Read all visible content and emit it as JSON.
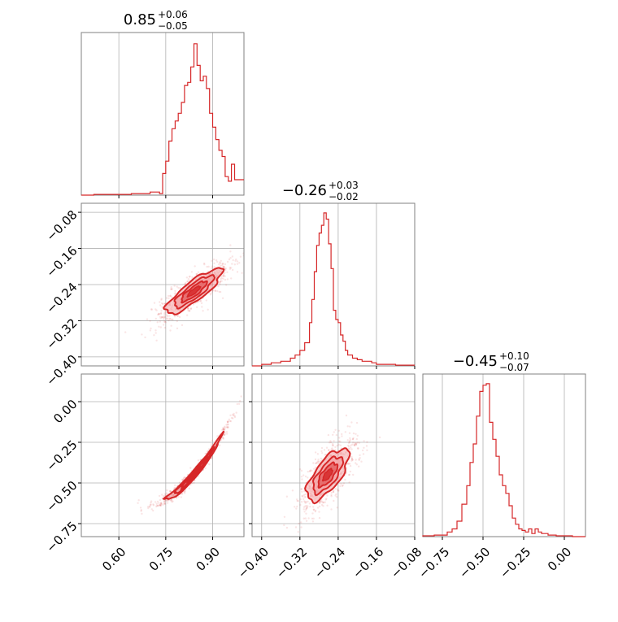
{
  "chart_data": [
    {
      "type": "histogram",
      "panel": "row1-col1",
      "parameter_index": 0,
      "title": {
        "median": "0.85",
        "upper": "+0.06",
        "lower": "−0.05"
      },
      "xlim": [
        0.48,
        1.0
      ],
      "bins": {
        "x": [
          0.48,
          0.52,
          0.56,
          0.6,
          0.64,
          0.67,
          0.7,
          0.73,
          0.74,
          0.75,
          0.76,
          0.77,
          0.78,
          0.79,
          0.8,
          0.81,
          0.82,
          0.83,
          0.84,
          0.85,
          0.86,
          0.87,
          0.88,
          0.89,
          0.9,
          0.91,
          0.92,
          0.93,
          0.94,
          0.95,
          0.96,
          0.97,
          0.98
        ],
        "y": [
          0,
          0.005,
          0.005,
          0.005,
          0.01,
          0.01,
          0.02,
          0.01,
          0.14,
          0.22,
          0.35,
          0.43,
          0.48,
          0.53,
          0.6,
          0.71,
          0.73,
          0.83,
          0.98,
          0.84,
          0.74,
          0.77,
          0.69,
          0.53,
          0.44,
          0.36,
          0.29,
          0.25,
          0.12,
          0.09,
          0.2,
          0.1,
          0.1
        ]
      }
    },
    {
      "type": "histogram",
      "panel": "row2-col2",
      "parameter_index": 1,
      "title": {
        "median": "−0.26",
        "upper": "+0.03",
        "lower": "−0.02"
      },
      "xlim": [
        -0.42,
        -0.08
      ],
      "xticks": [
        "−0.40",
        "−0.32",
        "−0.24",
        "−0.16",
        "−0.08"
      ],
      "bins": {
        "x": [
          -0.42,
          -0.4,
          -0.38,
          -0.36,
          -0.34,
          -0.33,
          -0.32,
          -0.31,
          -0.3,
          -0.295,
          -0.29,
          -0.285,
          -0.28,
          -0.275,
          -0.27,
          -0.265,
          -0.26,
          -0.255,
          -0.25,
          -0.245,
          -0.24,
          -0.235,
          -0.23,
          -0.225,
          -0.22,
          -0.21,
          -0.2,
          -0.19,
          -0.18,
          -0.17,
          -0.16,
          -0.14,
          -0.12,
          -0.1
        ],
        "y": [
          0,
          0.01,
          0.02,
          0.03,
          0.05,
          0.07,
          0.1,
          0.15,
          0.28,
          0.43,
          0.61,
          0.78,
          0.86,
          0.91,
          0.99,
          0.95,
          0.79,
          0.63,
          0.36,
          0.3,
          0.28,
          0.2,
          0.16,
          0.1,
          0.07,
          0.05,
          0.04,
          0.03,
          0.03,
          0.02,
          0.01,
          0.01,
          0.005,
          0.005
        ]
      }
    },
    {
      "type": "histogram",
      "panel": "row3-col3",
      "parameter_index": 2,
      "title": {
        "median": "−0.45",
        "upper": "+0.10",
        "lower": "−0.07"
      },
      "xlim": [
        -0.87,
        0.13
      ],
      "xticks": [
        "−0.75",
        "−0.50",
        "−0.25",
        "0.00"
      ],
      "bins": {
        "x": [
          -0.87,
          -0.8,
          -0.75,
          -0.72,
          -0.69,
          -0.66,
          -0.63,
          -0.6,
          -0.58,
          -0.56,
          -0.54,
          -0.52,
          -0.5,
          -0.48,
          -0.46,
          -0.44,
          -0.42,
          -0.4,
          -0.38,
          -0.36,
          -0.34,
          -0.32,
          -0.3,
          -0.28,
          -0.26,
          -0.24,
          -0.22,
          -0.2,
          -0.18,
          -0.16,
          -0.14,
          -0.1,
          -0.05,
          0.0,
          0.05
        ],
        "y": [
          0.005,
          0.01,
          0.01,
          0.03,
          0.05,
          0.1,
          0.21,
          0.33,
          0.48,
          0.6,
          0.78,
          0.94,
          0.98,
          0.99,
          0.74,
          0.63,
          0.52,
          0.4,
          0.33,
          0.28,
          0.2,
          0.12,
          0.08,
          0.05,
          0.04,
          0.03,
          0.05,
          0.02,
          0.05,
          0.03,
          0.02,
          0.01,
          0.005,
          0.005,
          0
        ]
      }
    },
    {
      "type": "contour",
      "panel": "row2-col1",
      "xlim": [
        0.48,
        1.0
      ],
      "ylim": [
        -0.42,
        -0.06
      ],
      "yticks": [
        "−0.08",
        "−0.16",
        "−0.24",
        "−0.32",
        "−0.40"
      ],
      "mean": [
        0.84,
        -0.255
      ],
      "sigma": [
        0.045,
        0.025
      ],
      "rho": 0.85
    },
    {
      "type": "contour",
      "panel": "row3-col1",
      "xlim": [
        0.48,
        1.0
      ],
      "ylim": [
        -0.83,
        0.17
      ],
      "xticks": [
        "0.60",
        "0.75",
        "0.90"
      ],
      "yticks": [
        "0.00",
        "−0.25",
        "−0.50",
        "−0.75"
      ],
      "mean": [
        0.84,
        -0.45
      ],
      "sigma": [
        0.045,
        0.1
      ],
      "rho": 0.99
    },
    {
      "type": "contour",
      "panel": "row3-col2",
      "xlim": [
        -0.42,
        -0.08
      ],
      "ylim": [
        -0.83,
        0.17
      ],
      "mean": [
        -0.262,
        -0.45
      ],
      "sigma": [
        0.022,
        0.08
      ],
      "rho": 0.7
    }
  ],
  "colors": {
    "series": "#d62728",
    "fill": "#f4a3a4",
    "grid": "#b0b0b0",
    "frame": "#808080"
  }
}
